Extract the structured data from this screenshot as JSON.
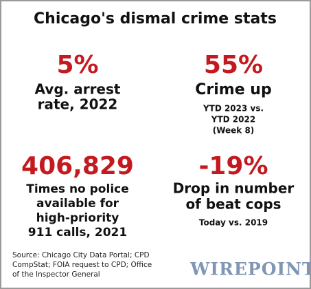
{
  "title": "Chicago's dismal crime stats",
  "stats": [
    {
      "value": "5%",
      "label": [
        "Avg. arrest",
        "rate, 2022"
      ]
    },
    {
      "value": "55%",
      "label": [
        "Crime up"
      ],
      "note": [
        "YTD 2023 vs.",
        "YTD 2022",
        "(Week 8)"
      ]
    },
    {
      "value": "406,829",
      "label": [
        "Times no police",
        "available for",
        "high-priority",
        "911 calls, 2021"
      ]
    },
    {
      "value": "-19%",
      "label": [
        "Drop in number",
        "of beat cops"
      ],
      "note": [
        "Today vs. 2019"
      ]
    }
  ],
  "source": [
    "Source: Chicago City Data Portal; CPD",
    "CompStat; FOIA request to CPD; Office",
    "of the Inspector General"
  ],
  "logo": "WIREPOINTS"
}
